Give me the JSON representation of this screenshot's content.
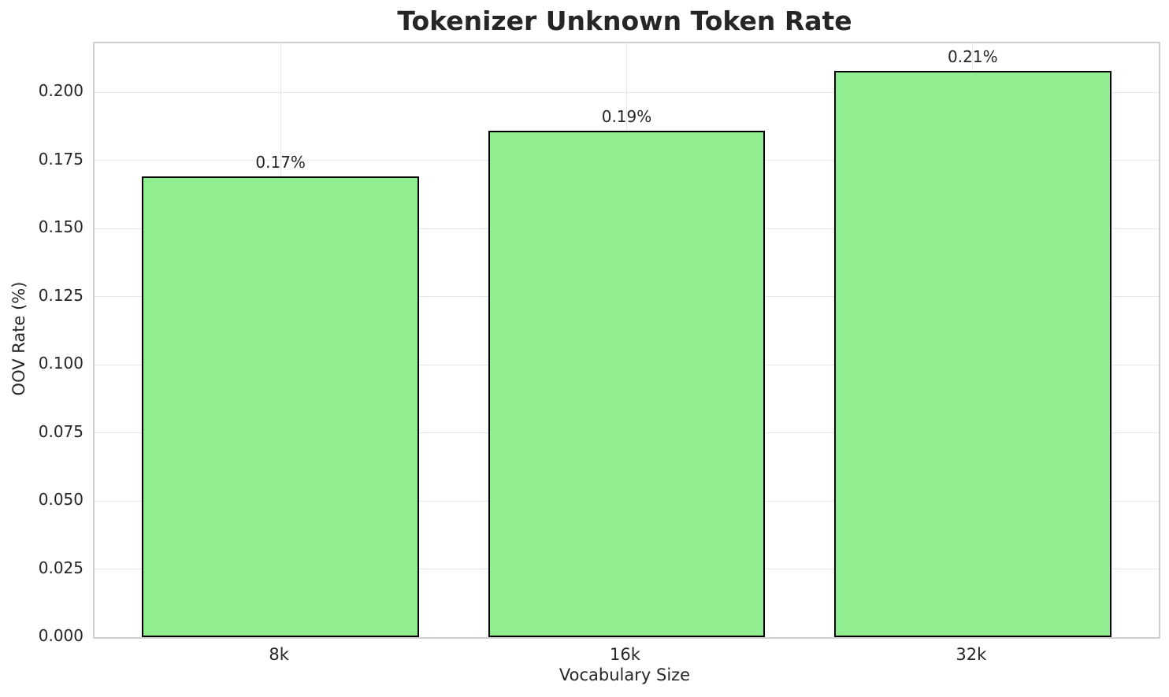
{
  "chart_data": {
    "type": "bar",
    "title": "Tokenizer Unknown Token Rate",
    "xlabel": "Vocabulary Size",
    "ylabel": "OOV Rate (%)",
    "categories": [
      "8k",
      "16k",
      "32k"
    ],
    "values": [
      0.169,
      0.186,
      0.208
    ],
    "bar_labels": [
      "0.17%",
      "0.19%",
      "0.21%"
    ],
    "yticks": [
      0.0,
      0.025,
      0.05,
      0.075,
      0.1,
      0.125,
      0.15,
      0.175,
      0.2
    ],
    "ytick_labels": [
      "0.000",
      "0.025",
      "0.050",
      "0.075",
      "0.100",
      "0.125",
      "0.150",
      "0.175",
      "0.200"
    ],
    "ylim": [
      0,
      0.218
    ],
    "grid": true,
    "legend": false,
    "bar_width_fraction": 0.8,
    "colors": {
      "bar_fill": "#90EE90",
      "bar_edge": "#000000",
      "grid": "#e7e7e7",
      "spine": "#cfcfcf",
      "text": "#262626",
      "background": "#ffffff"
    }
  }
}
